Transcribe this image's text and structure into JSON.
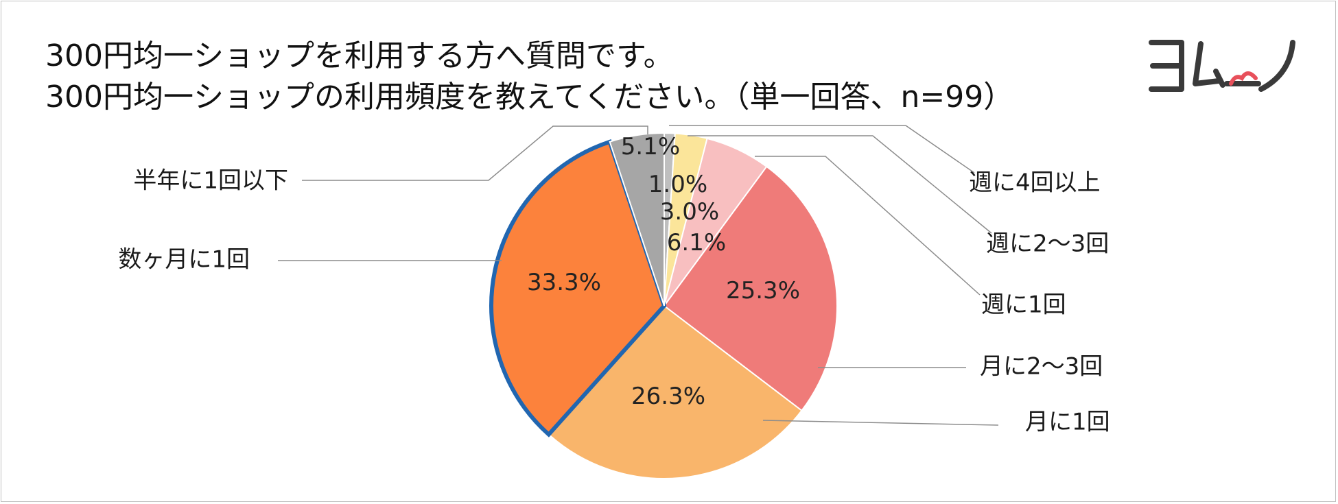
{
  "header": {
    "title_line1": "300円均一ショップを利用する方へ質問です。",
    "title_line2": "300円均一ショップの利用頻度を教えてください。（単一回答、n=99）"
  },
  "logo": {
    "name": "ヨムーノ",
    "colors": {
      "text": "#3a3a3a",
      "accent": "#e8505b"
    }
  },
  "chart_data": {
    "type": "pie",
    "title": "",
    "slices": [
      {
        "name": "週に4回以上",
        "value": 1.0,
        "label": "1.0%",
        "color": "#bfbfbf"
      },
      {
        "name": "週に2～3回",
        "value": 3.0,
        "label": "3.0%",
        "color": "#fbe59a"
      },
      {
        "name": "週に1回",
        "value": 6.1,
        "label": "6.1%",
        "color": "#f8bfc0"
      },
      {
        "name": "月に2～3回",
        "value": 25.3,
        "label": "25.3%",
        "color": "#ef7b79"
      },
      {
        "name": "月に1回",
        "value": 26.3,
        "label": "26.3%",
        "color": "#f9b56b"
      },
      {
        "name": "数ヶ月に1回",
        "value": 33.3,
        "label": "33.3%",
        "color": "#fc823c",
        "highlighted": true
      },
      {
        "name": "半年に1回以下",
        "value": 5.1,
        "label": "5.1%",
        "color": "#a6a6a6"
      }
    ],
    "start": "12 o'clock",
    "direction": "clockwise",
    "highlight_color": "#2166b0",
    "leader_line_color": "#8c8c8c"
  }
}
